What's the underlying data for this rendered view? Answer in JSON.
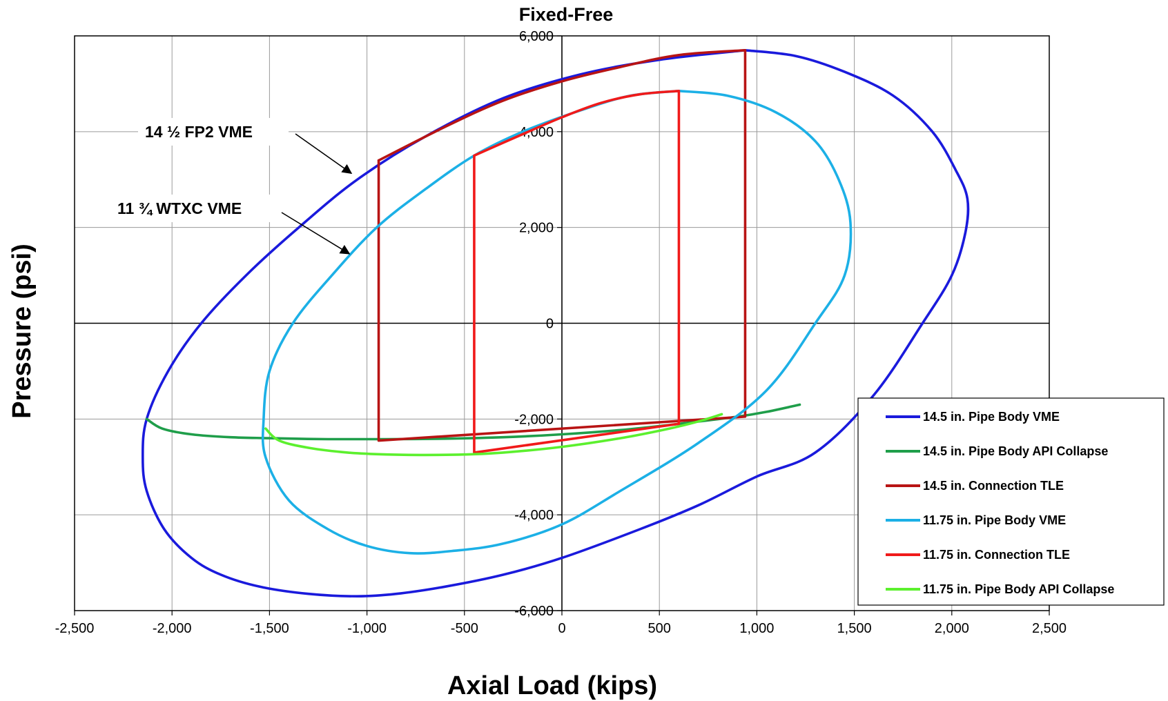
{
  "chart_data": {
    "type": "line",
    "title": "Fixed-Free",
    "xlabel": "Axial Load (kips)",
    "ylabel": "Pressure (psi)",
    "xlim": [
      -2500,
      2500
    ],
    "ylim": [
      -6000,
      6000
    ],
    "x_ticks": [
      -2500,
      -2000,
      -1500,
      -1000,
      -500,
      0,
      500,
      1000,
      1500,
      2000,
      2500
    ],
    "y_ticks": [
      -6000,
      -4000,
      -2000,
      0,
      2000,
      4000,
      6000
    ],
    "x_tick_labels": [
      "-2,500",
      "-2,000",
      "-1,500",
      "-1,000",
      "-500",
      "0",
      "500",
      "1,000",
      "1,500",
      "2,000",
      "2,500"
    ],
    "y_tick_labels": [
      "-6,000",
      "-4,000",
      "-2,000",
      "0",
      "2,000",
      "4,000",
      "6,000"
    ],
    "grid": true,
    "legend_position": "bottom-right",
    "series": [
      {
        "name": "14.5 in. Pipe Body VME",
        "color": "#1a1adc",
        "x": [
          940,
          1200,
          1450,
          1700,
          1900,
          2020,
          2080,
          2070,
          2000,
          1850,
          1600,
          1300,
          1000,
          700,
          400,
          0,
          -300,
          -600,
          -850,
          -1050,
          -1300,
          -1550,
          -1750,
          -1900,
          -2040,
          -2130,
          -2150,
          -2130,
          -2020,
          -1850,
          -1620,
          -1350,
          -1050,
          -700,
          -300,
          100,
          500,
          940
        ],
        "y": [
          5700,
          5580,
          5250,
          4750,
          4000,
          3200,
          2600,
          1900,
          1000,
          0,
          -1500,
          -2700,
          -3200,
          -3800,
          -4300,
          -4900,
          -5250,
          -5500,
          -5650,
          -5700,
          -5650,
          -5500,
          -5250,
          -4900,
          -4300,
          -3500,
          -2800,
          -2000,
          -1000,
          0,
          1000,
          2000,
          3000,
          3900,
          4700,
          5200,
          5500,
          5700
        ]
      },
      {
        "name": "14.5 in. Pipe Body API Collapse",
        "color": "#1f9e4a",
        "x": [
          -2130,
          -2050,
          -1900,
          -1700,
          -1500,
          -1200,
          -900,
          -600,
          -300,
          0,
          300,
          600,
          900,
          1050,
          1220
        ],
        "y": [
          -2000,
          -2200,
          -2320,
          -2380,
          -2400,
          -2420,
          -2420,
          -2410,
          -2380,
          -2320,
          -2230,
          -2100,
          -1950,
          -1850,
          -1700
        ]
      },
      {
        "name": "14.5 in. Connection TLE",
        "color": "#b81414",
        "x": [
          -940,
          -940,
          940,
          940,
          600,
          300,
          0,
          -300,
          -600,
          -940
        ],
        "y": [
          3400,
          -2450,
          -1950,
          5700,
          5600,
          5350,
          5050,
          4650,
          4100,
          3400
        ]
      },
      {
        "name": "11.75 in. Pipe Body VME",
        "color": "#1cb0e6",
        "x": [
          600,
          850,
          1100,
          1300,
          1420,
          1480,
          1450,
          1300,
          1050,
          700,
          300,
          0,
          -300,
          -550,
          -780,
          -1000,
          -1200,
          -1400,
          -1520,
          -1530,
          -1500,
          -1380,
          -1180,
          -950,
          -700,
          -450,
          -200,
          100,
          350,
          600
        ],
        "y": [
          4850,
          4750,
          4400,
          3800,
          3000,
          2100,
          1000,
          0,
          -1400,
          -2500,
          -3500,
          -4200,
          -4600,
          -4750,
          -4800,
          -4650,
          -4300,
          -3700,
          -2800,
          -2000,
          -1000,
          0,
          1000,
          2000,
          2800,
          3500,
          4000,
          4450,
          4750,
          4850
        ]
      },
      {
        "name": "11.75 in. Connection TLE",
        "color": "#f01a1a",
        "x": [
          -450,
          -450,
          600,
          600,
          400,
          200,
          0,
          -200,
          -450
        ],
        "y": [
          3500,
          -2700,
          -2100,
          4850,
          4780,
          4600,
          4300,
          3950,
          3500
        ]
      },
      {
        "name": "11.75 in. Pipe Body API Collapse",
        "color": "#5cf02e",
        "x": [
          -1520,
          -1450,
          -1300,
          -1100,
          -900,
          -700,
          -500,
          -300,
          0,
          300,
          550,
          700,
          820
        ],
        "y": [
          -2200,
          -2450,
          -2600,
          -2700,
          -2740,
          -2750,
          -2740,
          -2700,
          -2580,
          -2400,
          -2200,
          -2050,
          -1900
        ]
      }
    ],
    "annotations": [
      {
        "text": "14 ½ FP2 VME",
        "arrow_to": [
          -1080,
          3130
        ]
      },
      {
        "text": "11 ¾ WTXC VME",
        "arrow_to": [
          -1090,
          1450
        ]
      }
    ]
  }
}
